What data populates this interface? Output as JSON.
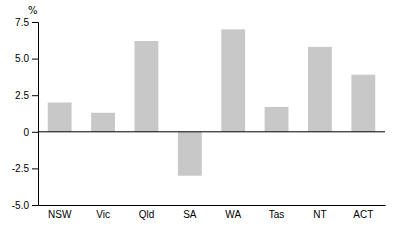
{
  "chart_data": {
    "type": "bar",
    "ylabel": "%",
    "categories": [
      "NSW",
      "Vic",
      "Qld",
      "SA",
      "WA",
      "Tas",
      "NT",
      "ACT"
    ],
    "values": [
      2.0,
      1.3,
      6.2,
      -3.0,
      7.0,
      1.7,
      5.8,
      3.9
    ],
    "color": "#c8c8c8",
    "ylim": [
      -5.0,
      7.5
    ],
    "yticks": [
      {
        "value": -5.0,
        "label": "-5.0"
      },
      -2.5,
      0,
      2.5,
      {
        "value": 5.0,
        "label": "5.0"
      },
      7.5
    ],
    "grid": false
  }
}
